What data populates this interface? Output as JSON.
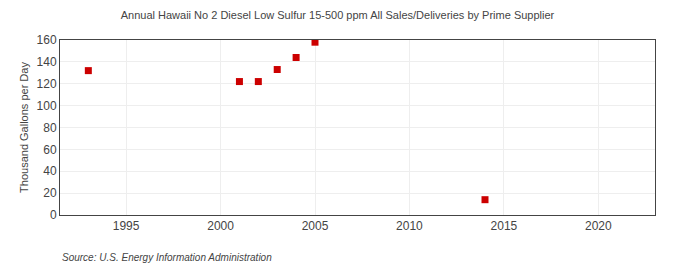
{
  "chart_data": {
    "type": "scatter",
    "title": "Annual Hawaii No 2 Diesel Low Sulfur 15-500 ppm All Sales/Deliveries by Prime Supplier",
    "ylabel": "Thousand Gallons per Day",
    "annotations": [
      "Source: U.S. Energy Information Administration"
    ],
    "x": [
      1993,
      2001,
      2002,
      2003,
      2004,
      2005,
      2014
    ],
    "values": [
      132,
      122,
      122,
      133,
      144,
      158,
      14
    ],
    "color": "#cc0000",
    "marker": "square",
    "xlim": [
      1991.5,
      2023
    ],
    "ylim": [
      0,
      160
    ],
    "xticks": [
      1995,
      2000,
      2005,
      2010,
      2015,
      2020
    ],
    "yticks": [
      0,
      20,
      40,
      60,
      80,
      100,
      120,
      140,
      160
    ],
    "grid": true
  }
}
